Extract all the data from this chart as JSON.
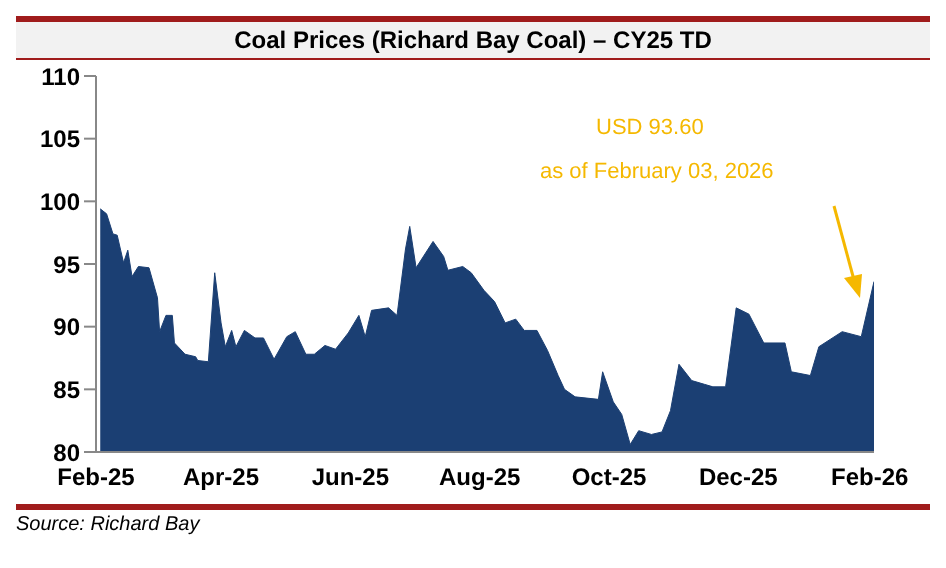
{
  "chart_data": {
    "type": "area",
    "title": "Coal Prices (Richard Bay Coal) – CY25 TD",
    "x": [
      "2025-02-03",
      "2025-02-06",
      "2025-02-09",
      "2025-02-11",
      "2025-02-14",
      "2025-02-16",
      "2025-02-18",
      "2025-02-21",
      "2025-02-26",
      "2025-03-02",
      "2025-03-03",
      "2025-03-06",
      "2025-03-09",
      "2025-03-10",
      "2025-03-15",
      "2025-03-20",
      "2025-03-21",
      "2025-03-26",
      "2025-03-29",
      "2025-04-01",
      "2025-04-03",
      "2025-04-06",
      "2025-04-08",
      "2025-04-12",
      "2025-04-17",
      "2025-04-21",
      "2025-04-26",
      "2025-05-02",
      "2025-05-06",
      "2025-05-11",
      "2025-05-15",
      "2025-05-20",
      "2025-05-25",
      "2025-05-31",
      "2025-06-05",
      "2025-06-08",
      "2025-06-11",
      "2025-06-19",
      "2025-06-23",
      "2025-06-27",
      "2025-06-29",
      "2025-07-02",
      "2025-07-10",
      "2025-07-15",
      "2025-07-17",
      "2025-07-24",
      "2025-07-28",
      "2025-08-03",
      "2025-08-08",
      "2025-08-13",
      "2025-08-18",
      "2025-08-22",
      "2025-08-28",
      "2025-09-02",
      "2025-09-07",
      "2025-09-10",
      "2025-09-15",
      "2025-09-26",
      "2025-09-28",
      "2025-10-03",
      "2025-10-07",
      "2025-10-11",
      "2025-10-15",
      "2025-10-21",
      "2025-10-26",
      "2025-10-30",
      "2025-11-03",
      "2025-11-09",
      "2025-11-15",
      "2025-11-19",
      "2025-11-25",
      "2025-11-30",
      "2025-12-06",
      "2025-12-13",
      "2025-12-23",
      "2025-12-26",
      "2026-01-04",
      "2026-01-08",
      "2026-01-19",
      "2026-01-28",
      "2026-02-03"
    ],
    "series": [
      {
        "color": "#1b3f73",
        "values": [
          99.4,
          99.0,
          97.4,
          97.3,
          95.1,
          96.1,
          94.0,
          94.8,
          94.7,
          92.3,
          89.6,
          90.9,
          90.9,
          88.7,
          87.8,
          87.6,
          87.3,
          87.2,
          94.3,
          90.3,
          88.4,
          89.7,
          88.4,
          89.7,
          89.1,
          89.1,
          87.4,
          89.2,
          89.6,
          87.8,
          87.8,
          88.5,
          88.2,
          89.5,
          90.9,
          89.2,
          91.3,
          91.5,
          90.9,
          96.2,
          98.0,
          94.7,
          96.8,
          95.6,
          94.5,
          94.8,
          94.3,
          92.9,
          92.0,
          90.3,
          90.6,
          89.7,
          89.7,
          88.1,
          86.1,
          85.0,
          84.4,
          84.2,
          86.4,
          84.0,
          83.0,
          80.6,
          81.7,
          81.4,
          81.6,
          83.3,
          87.0,
          85.7,
          85.4,
          85.2,
          85.2,
          91.5,
          91.0,
          88.7,
          88.7,
          86.4,
          86.1,
          88.4,
          89.6,
          89.2,
          93.6
        ]
      }
    ],
    "xlim": [
      "2025-02-01",
      "2026-02-03"
    ],
    "xticks": [
      {
        "value": "2025-02-01",
        "label": "Feb-25"
      },
      {
        "value": "2025-04-01",
        "label": "Apr-25"
      },
      {
        "value": "2025-06-01",
        "label": "Jun-25"
      },
      {
        "value": "2025-08-01",
        "label": "Aug-25"
      },
      {
        "value": "2025-10-01",
        "label": "Oct-25"
      },
      {
        "value": "2025-12-01",
        "label": "Dec-25"
      },
      {
        "value": "2026-02-01",
        "label": "Feb-26"
      }
    ],
    "ylim": [
      80,
      110
    ],
    "yticks": [
      80,
      85,
      90,
      95,
      100,
      105,
      110
    ],
    "annotations": [
      "USD 93.60",
      "as of February 03, 2026",
      "Source: Richard Bay"
    ],
    "grid": false,
    "legend": false
  }
}
